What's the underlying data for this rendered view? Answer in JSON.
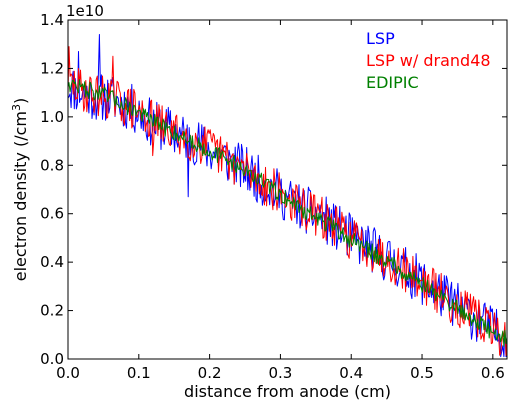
{
  "chart_data": {
    "type": "line",
    "xlabel": "distance from anode (cm)",
    "ylabel_prefix": "electron density (/cm",
    "ylabel_sup": "3",
    "ylabel_suffix": ")",
    "y_offset_label": "1e10",
    "xlim": [
      0.0,
      0.62
    ],
    "ylim": [
      0.0,
      1.4
    ],
    "x_ticks": [
      0.0,
      0.1,
      0.2,
      0.3,
      0.4,
      0.5,
      0.6
    ],
    "x_tick_labels": [
      "0.0",
      "0.1",
      "0.2",
      "0.3",
      "0.4",
      "0.5",
      "0.6"
    ],
    "y_ticks": [
      0.0,
      0.2,
      0.4,
      0.6,
      0.8,
      1.0,
      1.2,
      1.4
    ],
    "y_tick_labels": [
      "0.0",
      "0.2",
      "0.4",
      "0.6",
      "0.8",
      "1.0",
      "1.2",
      "1.4"
    ],
    "grid": false,
    "legend_position": "top-right",
    "series": [
      {
        "name": "LSP",
        "color": "#0000ff",
        "x": [
          0.0,
          0.02,
          0.04,
          0.06,
          0.08,
          0.1,
          0.12,
          0.14,
          0.16,
          0.18,
          0.2,
          0.22,
          0.24,
          0.26,
          0.28,
          0.3,
          0.32,
          0.34,
          0.36,
          0.38,
          0.4,
          0.42,
          0.44,
          0.46,
          0.48,
          0.5,
          0.52,
          0.54,
          0.56,
          0.58,
          0.6,
          0.62
        ],
        "y": [
          1.13,
          1.1,
          1.08,
          1.08,
          1.05,
          1.02,
          0.97,
          0.95,
          0.92,
          0.9,
          0.86,
          0.83,
          0.8,
          0.76,
          0.72,
          0.68,
          0.64,
          0.61,
          0.58,
          0.54,
          0.5,
          0.47,
          0.43,
          0.4,
          0.36,
          0.32,
          0.28,
          0.24,
          0.2,
          0.16,
          0.12,
          0.08
        ],
        "noise": 0.1,
        "peaks": [
          {
            "x": 0.044,
            "y": 1.34
          },
          {
            "x": 0.015,
            "y": 1.27
          },
          {
            "x": 0.17,
            "y": 0.67
          }
        ]
      },
      {
        "name": "LSP w/ drand48",
        "color": "#ff0000",
        "x": [
          0.0,
          0.02,
          0.04,
          0.06,
          0.08,
          0.1,
          0.12,
          0.14,
          0.16,
          0.18,
          0.2,
          0.22,
          0.24,
          0.26,
          0.28,
          0.3,
          0.32,
          0.34,
          0.36,
          0.38,
          0.4,
          0.42,
          0.44,
          0.46,
          0.48,
          0.5,
          0.52,
          0.54,
          0.56,
          0.58,
          0.6,
          0.62
        ],
        "y": [
          1.14,
          1.11,
          1.09,
          1.08,
          1.05,
          1.02,
          0.98,
          0.95,
          0.92,
          0.9,
          0.87,
          0.83,
          0.8,
          0.76,
          0.72,
          0.68,
          0.64,
          0.61,
          0.58,
          0.54,
          0.5,
          0.47,
          0.43,
          0.4,
          0.36,
          0.32,
          0.28,
          0.24,
          0.2,
          0.16,
          0.12,
          0.08
        ],
        "noise": 0.09,
        "peaks": [
          {
            "x": 0.002,
            "y": 1.29
          },
          {
            "x": 0.064,
            "y": 1.25
          },
          {
            "x": 0.12,
            "y": 0.84
          }
        ]
      },
      {
        "name": "EDIPIC",
        "color": "#008000",
        "x": [
          0.0,
          0.02,
          0.04,
          0.06,
          0.08,
          0.1,
          0.12,
          0.14,
          0.16,
          0.18,
          0.2,
          0.22,
          0.24,
          0.26,
          0.28,
          0.3,
          0.32,
          0.34,
          0.36,
          0.38,
          0.4,
          0.42,
          0.44,
          0.46,
          0.48,
          0.5,
          0.52,
          0.54,
          0.56,
          0.58,
          0.6,
          0.62
        ],
        "y": [
          1.14,
          1.12,
          1.1,
          1.08,
          1.05,
          1.02,
          0.98,
          0.95,
          0.92,
          0.89,
          0.86,
          0.83,
          0.8,
          0.76,
          0.72,
          0.68,
          0.64,
          0.6,
          0.57,
          0.53,
          0.49,
          0.46,
          0.42,
          0.39,
          0.35,
          0.31,
          0.27,
          0.23,
          0.19,
          0.15,
          0.11,
          0.08
        ],
        "noise": 0.035,
        "peaks": []
      }
    ]
  }
}
